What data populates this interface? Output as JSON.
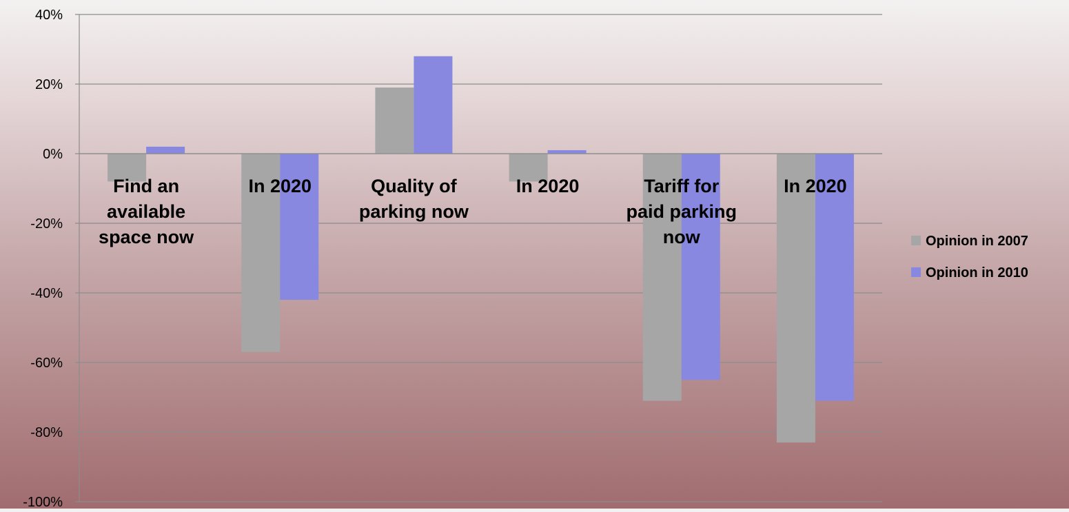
{
  "chart_data": {
    "type": "bar",
    "categories": [
      "Find an available space now",
      "In 2020",
      "Quality of parking now",
      "In 2020",
      "Tariff for paid parking now",
      "In 2020"
    ],
    "category_lines": [
      [
        "Find an",
        "available",
        "space now"
      ],
      [
        "In 2020"
      ],
      [
        "Quality of",
        "parking now"
      ],
      [
        "In 2020"
      ],
      [
        "Tariff for",
        "paid parking",
        "now"
      ],
      [
        "In 2020"
      ]
    ],
    "series": [
      {
        "name": "Opinion in 2007",
        "color": "#a6a6a6",
        "values": [
          -8,
          -57,
          19,
          -8,
          -71,
          -83
        ]
      },
      {
        "name": "Opinion in 2010",
        "color": "#8888e0",
        "values": [
          2,
          -42,
          28,
          1,
          -65,
          -71
        ]
      }
    ],
    "ylim": [
      -100,
      40
    ],
    "yticks": [
      40,
      20,
      0,
      -20,
      -40,
      -60,
      -80,
      -100
    ],
    "ytick_labels": [
      "40%",
      "20%",
      "0%",
      "-20%",
      "-40%",
      "-60%",
      "-80%",
      "-100%"
    ],
    "title": "",
    "xlabel": "",
    "ylabel": "",
    "grid": true,
    "legend_position": "right"
  }
}
